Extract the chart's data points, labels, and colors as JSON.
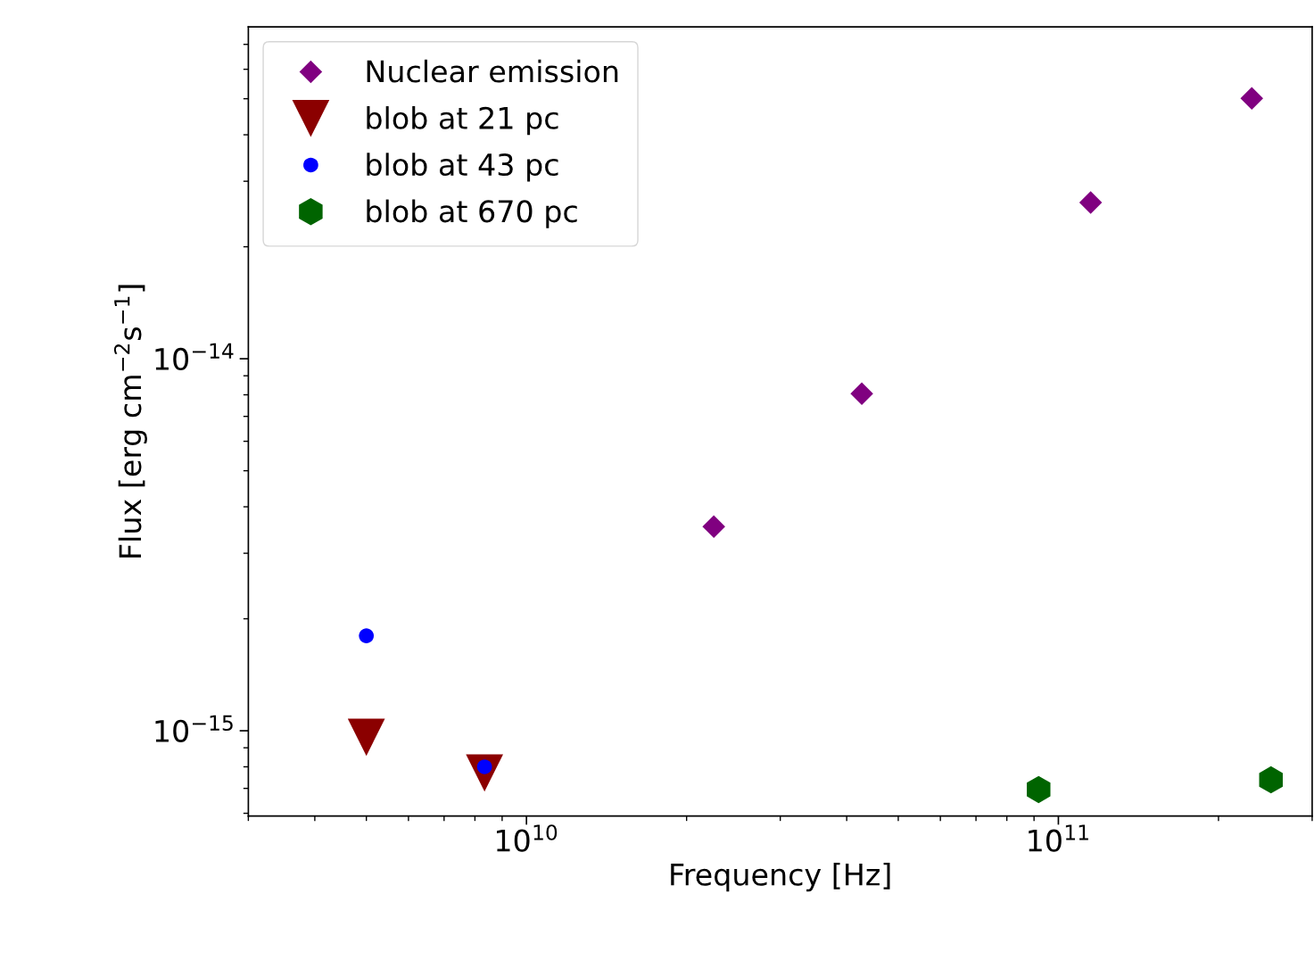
{
  "chart_data": {
    "type": "scatter",
    "xlabel": "Frequency [Hz]",
    "ylabel": "Flux [erg cm$^{−2}$s$^{−1}$]",
    "log": "xy",
    "grid": false,
    "legend": "top left",
    "xlim": [
      3000000000.0,
      300000000000.0
    ],
    "ylim": [
      5.9e-16,
      7.8e-14
    ],
    "xticks": [
      {
        "value": 10000000000.0,
        "label": "10$^{10}$"
      },
      {
        "value": 100000000000.0,
        "label": "10$^{11}$"
      }
    ],
    "yticks": [
      {
        "value": 1e-15,
        "label": "10$^{−15}$"
      },
      {
        "value": 1e-14,
        "label": "10$^{−14}$"
      }
    ],
    "series": [
      {
        "name": "Nuclear emission",
        "color": "#800080",
        "marker": "diamond",
        "x": [
          22500000000.0,
          42700000000.0,
          115000000000.0,
          231000000000.0
        ],
        "values": [
          3.54e-15,
          8.06e-15,
          2.63e-14,
          5.01e-14
        ]
      },
      {
        "name": "blob at 21 pc",
        "color": "#8b0000",
        "marker": "triangle",
        "x": [
          5000000000.0,
          8340000000.0
        ],
        "values": [
          9.6e-16,
          7.7e-16
        ]
      },
      {
        "name": "blob at 43 pc",
        "color": "#0000ff",
        "marker": "circle",
        "x": [
          5000000000.0,
          8340000000.0
        ],
        "values": [
          1.8e-15,
          8e-16
        ]
      },
      {
        "name": "blob at 670 pc",
        "color": "#006400",
        "x": [
          91800000000.0,
          251000000000.0
        ],
        "values": [
          6.95e-16,
          7.38e-16
        ]
      }
    ]
  }
}
